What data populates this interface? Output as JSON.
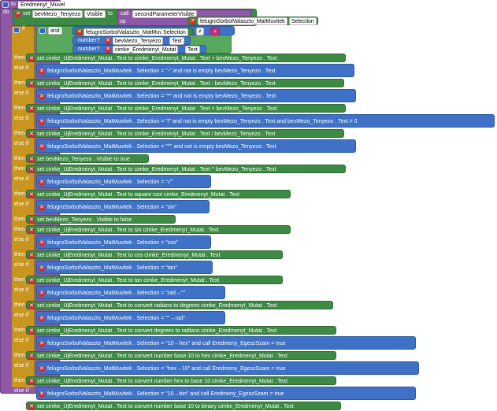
{
  "header": {
    "proc_keyword": "to",
    "proc_name": "Eredmenyt_Muvel",
    "do_label": "do"
  },
  "keywords": {
    "set": "set",
    "to": "to",
    "call": "call",
    "if": "if",
    "then": "then",
    "else_if": "else if",
    "else": "else",
    "op": "op",
    "and": "and",
    "not": "not",
    "is_empty": "is empty",
    "number": "number?",
    "convert": "convert",
    "convert_number": "convert number"
  },
  "top_call": {
    "target": "bevMezo_Tenyezo",
    "prop": "Visible",
    "proc": "secondParameterVisible",
    "arg_comp": "felugroSorbolValaszto_MatMuvitek",
    "arg_prop": "Selection"
  },
  "if_cond": {
    "comp1": "felugroSorbolValaszto_MatMuvitek",
    "prop1": "Selection",
    "op": "≠",
    "val": "+",
    "num1_comp": "bevMezo_Tenyezo",
    "num1_prop": "Text",
    "num2_comp": "cimke_Eredmenyt_Mutat",
    "num2_prop": "Text"
  },
  "rows": [
    {
      "kind": "then",
      "text": "set cimke_UjEredmenyt_Mutat . Text to   cimke_Eredmenyt_Mutat . Text  +  bevMezo_Tenyezo . Text"
    },
    {
      "kind": "elseif",
      "text": "felugroSorbolValaszto_MatMuvitek . Selection = \"-\"  and  not is empty bevMezo_Tenyezo . Text"
    },
    {
      "kind": "then",
      "text": "set cimke_UjEredmenyt_Mutat . Text to   cimke_Eredmenyt_Mutat . Text  -  bevMezo_Tenyezo . Text"
    },
    {
      "kind": "elseif",
      "text": "felugroSorbolValaszto_MatMuvitek . Selection = \"*\"  and  not is empty bevMezo_Tenyezo . Text"
    },
    {
      "kind": "then",
      "text": "set cimke_UjEredmenyt_Mutat . Text to   cimke_Eredmenyt_Mutat . Text  ×  bevMezo_Tenyezo . Text"
    },
    {
      "kind": "elseif",
      "text": "felugroSorbolValaszto_MatMuvitek . Selection = \"/\"  and  not is empty bevMezo_Tenyezo . Text  and  bevMezo_Tenyezo . Text ≠ 0"
    },
    {
      "kind": "then",
      "text": "set cimke_UjEredmenyt_Mutat . Text to   cimke_Eredmenyt_Mutat . Text  /  bevMezo_Tenyezo . Text"
    },
    {
      "kind": "elseif",
      "text": "felugroSorbolValaszto_MatMuvitek . Selection = \"^\"  and  not is empty bevMezo_Tenyezo . Text"
    },
    {
      "kind": "then",
      "text": "set bevMezo_Tenyezo . Visible to true"
    },
    {
      "kind": "then",
      "text": "set cimke_UjEredmenyt_Mutat . Text to   cimke_Eredmenyt_Mutat . Text  ^  bevMezo_Tenyezo . Text"
    },
    {
      "kind": "elseif",
      "text": "felugroSorbolValaszto_MatMuvitek . Selection = \"√\""
    },
    {
      "kind": "then",
      "text": "set cimke_UjEredmenyt_Mutat . Text to   square root   cimke_Eredmenyt_Mutat . Text"
    },
    {
      "kind": "elseif",
      "text": "felugroSorbolValaszto_MatMuvitek . Selection = \"sin\""
    },
    {
      "kind": "then",
      "text": "set bevMezo_Tenyezo . Visible to false"
    },
    {
      "kind": "then",
      "text": "set cimke_UjEredmenyt_Mutat . Text to   sin   cimke_Eredmenyt_Mutat . Text"
    },
    {
      "kind": "elseif",
      "text": "felugroSorbolValaszto_MatMuvitek . Selection = \"cos\""
    },
    {
      "kind": "then",
      "text": "set cimke_UjEredmenyt_Mutat . Text to   cos   cimke_Eredmenyt_Mutat . Text"
    },
    {
      "kind": "elseif",
      "text": "felugroSorbolValaszto_MatMuvitek . Selection = \"tan\""
    },
    {
      "kind": "then",
      "text": "set cimke_UjEredmenyt_Mutat . Text to   tan   cimke_Eredmenyt_Mutat . Text"
    },
    {
      "kind": "elseif",
      "text": "felugroSorbolValaszto_MatMuvitek . Selection = \"rad→°\""
    },
    {
      "kind": "then",
      "text": "set cimke_UjEredmenyt_Mutat . Text to   convert radians to degrees   cimke_Eredmenyt_Mutat . Text"
    },
    {
      "kind": "elseif",
      "text": "felugroSorbolValaszto_MatMuvitek . Selection = \"°→rad\""
    },
    {
      "kind": "then",
      "text": "set cimke_UjEredmenyt_Mutat . Text to   convert degrees to radians   cimke_Eredmenyt_Mutat . Text"
    },
    {
      "kind": "elseif",
      "text": "felugroSorbolValaszto_MatMuvitek . Selection = \"10→hex\"  and  call Eredmeny_EgeszSzam = true"
    },
    {
      "kind": "then",
      "text": "set cimke_UjEredmenyt_Mutat . Text to   convert number base 10 to hex   cimke_Eredmenyt_Mutat . Text"
    },
    {
      "kind": "elseif",
      "text": "felugroSorbolValaszto_MatMuvitek . Selection = \"hex→10\"  and  call Eredmeny_EgeszSzam = true"
    },
    {
      "kind": "then",
      "text": "set cimke_UjEredmenyt_Mutat . Text to   convert number hex to base 10   cimke_Eredmenyt_Mutat . Text"
    },
    {
      "kind": "elseif",
      "text": "felugroSorbolValaszto_MatMuvitek . Selection = \"10→bin\"  and  call Eredmeny_EgeszSzam = true"
    },
    {
      "kind": "then",
      "text": "set cimke_UjEredmenyt_Mutat . Text to   convert number base 10 to binary   cimke_Eredmenyt_Mutat . Text"
    }
  ],
  "colors": {
    "procedure": "#8e58a6",
    "control": "#c8951e",
    "component": "#3d8a45",
    "math": "#3f72c7",
    "text": "#c0307a",
    "logic": "#58a85e"
  }
}
